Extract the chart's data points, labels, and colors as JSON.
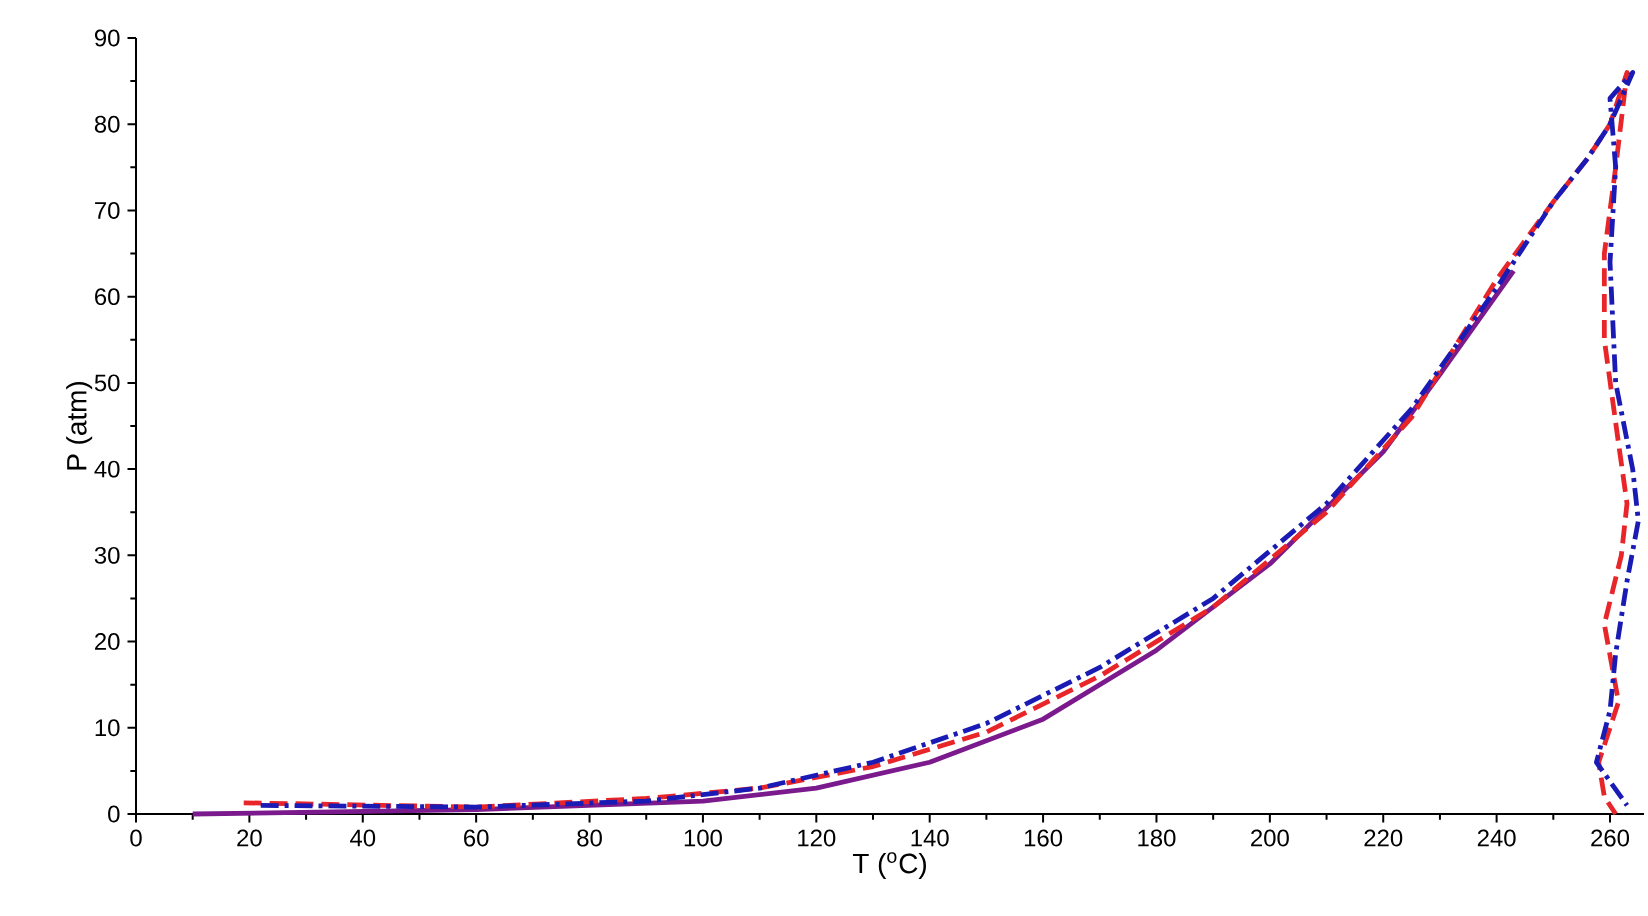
{
  "chart_data": {
    "type": "line",
    "xlabel": "T ($^{o}$C)",
    "ylabel": "P (atm)",
    "xlim": [
      0,
      266
    ],
    "ylim": [
      0,
      90
    ],
    "xticks": [
      0,
      20,
      40,
      60,
      80,
      100,
      120,
      140,
      160,
      180,
      200,
      220,
      240,
      260
    ],
    "yticks": [
      0,
      10,
      20,
      30,
      40,
      50,
      60,
      70,
      80,
      90
    ],
    "grid": false,
    "marker": "none",
    "series": [
      {
        "color": "#7a1a8c",
        "line_style": "solid",
        "x": [
          10,
          60,
          100,
          120,
          140,
          160,
          180,
          200,
          220,
          230,
          243
        ],
        "values": [
          0,
          0.5,
          1.5,
          3,
          6,
          11,
          19,
          29,
          42,
          51,
          63
        ]
      },
      {
        "color": "#e8262a",
        "line_style": "dashed",
        "x": [
          19,
          60,
          90,
          110,
          130,
          150,
          170,
          190,
          210,
          225,
          240,
          250,
          256,
          260,
          263,
          261,
          259,
          259,
          261.5,
          263,
          262,
          259,
          261.5,
          258,
          259,
          261
        ],
        "values": [
          1.3,
          0.8,
          1.8,
          3,
          5.5,
          9.5,
          16,
          24,
          35,
          46,
          62,
          71,
          76,
          80,
          86,
          75,
          65,
          55,
          43,
          36,
          30,
          22,
          13,
          6,
          2,
          0
        ]
      },
      {
        "color": "#1a1ab5",
        "line_style": "dashdot",
        "x": [
          22,
          60,
          90,
          110,
          130,
          150,
          170,
          190,
          210,
          225,
          240,
          250,
          256,
          260,
          264,
          260,
          261,
          260,
          261,
          264,
          265,
          263,
          261,
          260,
          257.6,
          263
        ],
        "values": [
          1,
          0.8,
          1.5,
          3,
          6,
          10.5,
          17,
          25,
          36,
          47,
          61,
          71,
          76,
          80,
          86,
          83,
          75,
          64,
          50,
          40,
          34,
          27,
          18.6,
          12,
          6,
          1
        ]
      }
    ]
  }
}
